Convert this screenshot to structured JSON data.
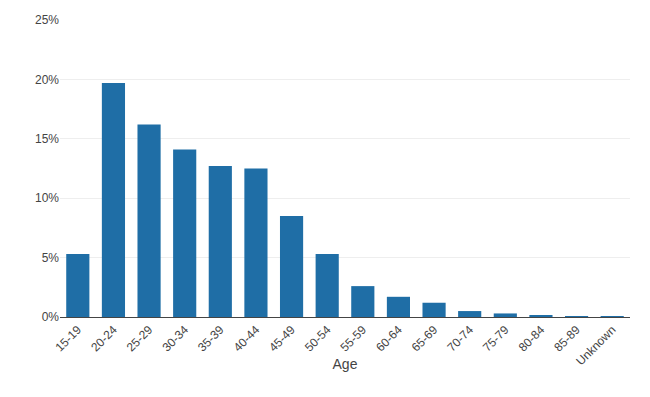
{
  "chart_data": {
    "type": "bar",
    "xlabel": "Age",
    "categories": [
      "15-19",
      "20-24",
      "25-29",
      "30-34",
      "35-39",
      "40-44",
      "45-49",
      "50-54",
      "55-59",
      "60-64",
      "65-69",
      "70-74",
      "75-79",
      "80-84",
      "85-89",
      "Unknown"
    ],
    "values": [
      0.053,
      0.197,
      0.162,
      0.141,
      0.127,
      0.125,
      0.085,
      0.053,
      0.026,
      0.017,
      0.012,
      0.005,
      0.003,
      0.001,
      0.0005,
      0.0001
    ],
    "color": "#1F6EA6",
    "ylim": [
      0,
      0.25
    ],
    "yticks": [
      {
        "value": 0,
        "label": "0%"
      },
      {
        "value": 0.05,
        "label": "5%"
      },
      {
        "value": 0.1,
        "label": "10%"
      },
      {
        "value": 0.15,
        "label": "15%"
      },
      {
        "value": 0.2,
        "label": "20%"
      },
      {
        "value": 0.25,
        "label": "25%"
      }
    ],
    "grid": true
  }
}
